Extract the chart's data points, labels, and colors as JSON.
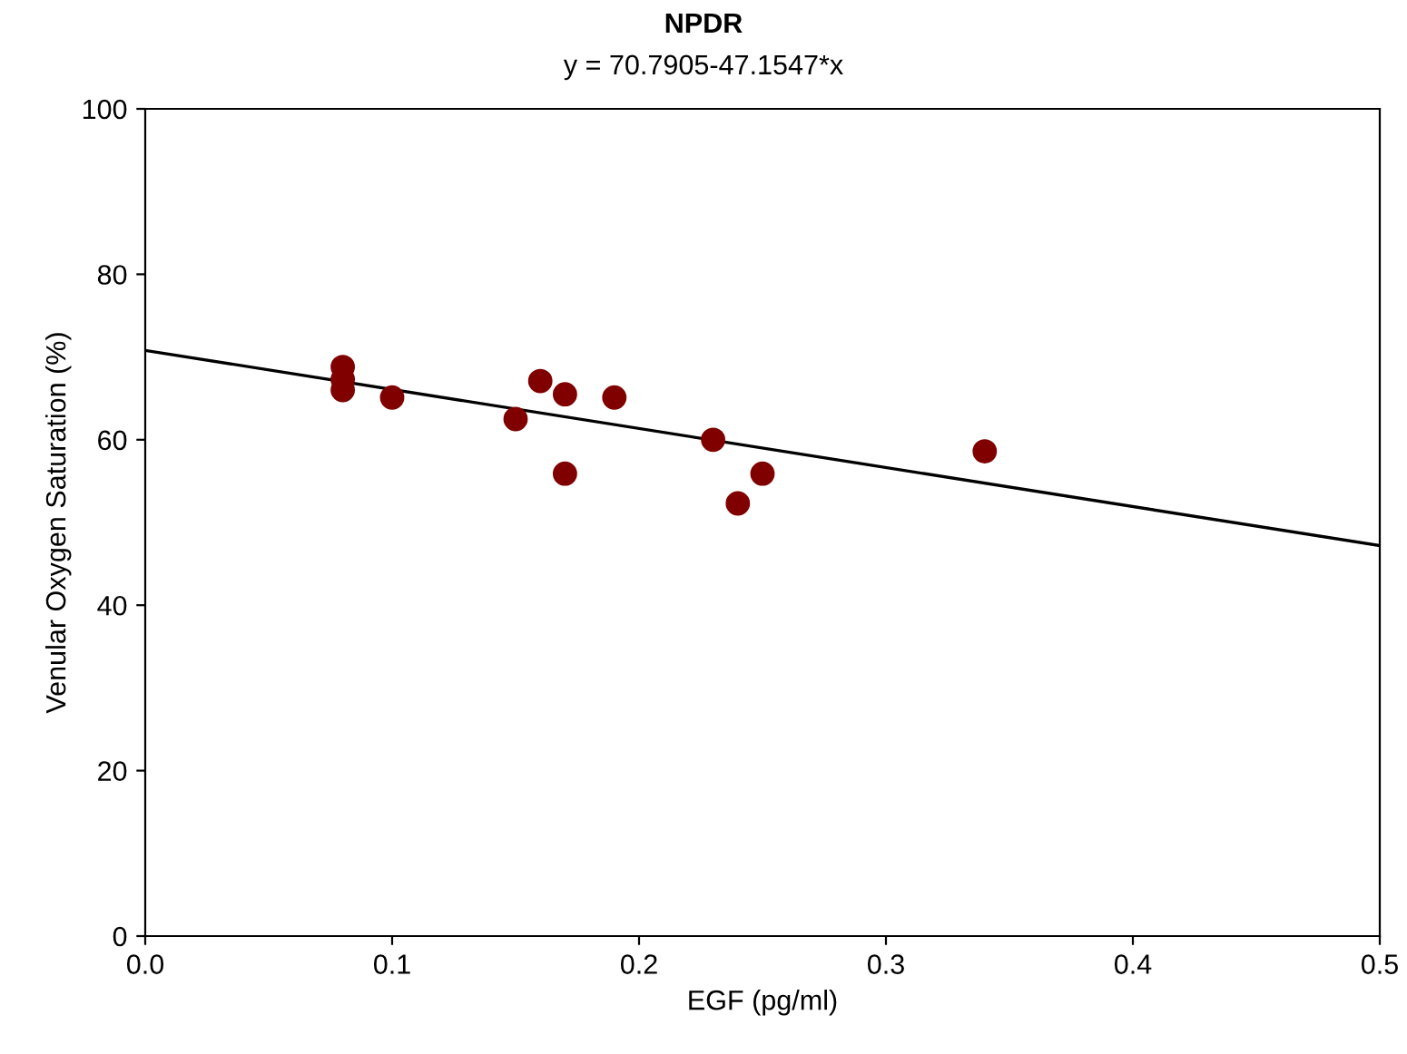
{
  "chart_data": {
    "type": "scatter",
    "title": "NPDR",
    "subtitle": "y = 70.7905-47.1547*x",
    "xlabel": "EGF (pg/ml)",
    "ylabel": "Venular Oxygen Saturation (%)",
    "series": [
      {
        "color": "#800000",
        "marker": "circle",
        "x": [
          0.08,
          0.08,
          0.08,
          0.1,
          0.15,
          0.16,
          0.17,
          0.17,
          0.19,
          0.23,
          0.24,
          0.25,
          0.34
        ],
        "values": [
          68.8,
          67.3,
          66.0,
          65.1,
          62.5,
          67.1,
          65.5,
          55.9,
          65.1,
          60.0,
          52.3,
          55.9,
          58.6
        ]
      },
      {
        "type": "line",
        "color": "#000000",
        "marker": "none",
        "x": [
          0,
          0.5
        ],
        "values": [
          70.8,
          47.2
        ]
      }
    ],
    "xlim": [
      0,
      0.5
    ],
    "xticks": [
      {
        "value": 0,
        "label": "0.0"
      },
      0.1,
      0.2,
      0.3,
      0.4,
      0.5
    ],
    "ylim": [
      0,
      100
    ],
    "yticks": [
      0,
      20,
      40,
      60,
      80,
      100
    ],
    "grid": false,
    "legend": false
  }
}
